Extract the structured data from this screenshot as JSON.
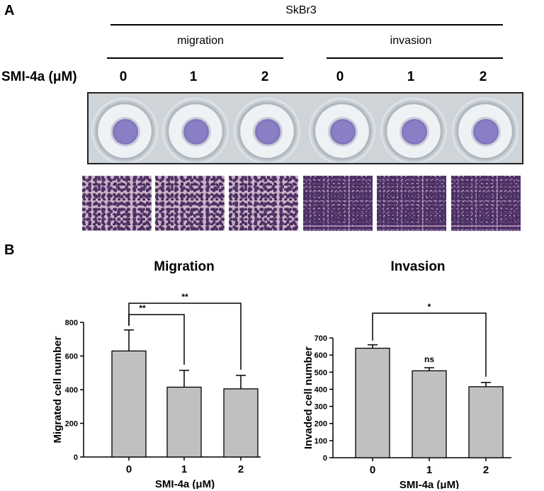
{
  "panel_a": {
    "label": "A",
    "cell_line": "SkBr3",
    "groups": [
      {
        "label": "migration"
      },
      {
        "label": "invasion"
      }
    ],
    "dose_label": "SMI-4a (μM)",
    "doses": [
      "0",
      "1",
      "2",
      "0",
      "1",
      "2"
    ]
  },
  "panel_b": {
    "label": "B"
  },
  "chart_data": [
    {
      "type": "bar",
      "title": "Migration",
      "xlabel": "SMI-4a (μM)",
      "ylabel": "Migrated cell number",
      "categories": [
        "0",
        "1",
        "2"
      ],
      "values": [
        630,
        415,
        405
      ],
      "errors": [
        125,
        100,
        80
      ],
      "ylim": [
        0,
        800
      ],
      "yticks": [
        0,
        200,
        400,
        600,
        800
      ],
      "bar_color": "#c0c0c0",
      "comparisons": [
        {
          "from": "0",
          "to": "1",
          "label": "**"
        },
        {
          "from": "0",
          "to": "2",
          "label": "**"
        }
      ],
      "annotations": []
    },
    {
      "type": "bar",
      "title": "Invasion",
      "xlabel": "SMI-4a (μM)",
      "ylabel": "Invaded cell number",
      "categories": [
        "0",
        "1",
        "2"
      ],
      "values": [
        640,
        508,
        415
      ],
      "errors": [
        20,
        18,
        25
      ],
      "ylim": [
        0,
        700
      ],
      "yticks": [
        0,
        100,
        200,
        300,
        400,
        500,
        600,
        700
      ],
      "bar_color": "#c0c0c0",
      "comparisons": [
        {
          "from": "0",
          "to": "2",
          "label": "*"
        }
      ],
      "annotations": [
        {
          "category": "1",
          "label": "ns"
        }
      ]
    }
  ]
}
